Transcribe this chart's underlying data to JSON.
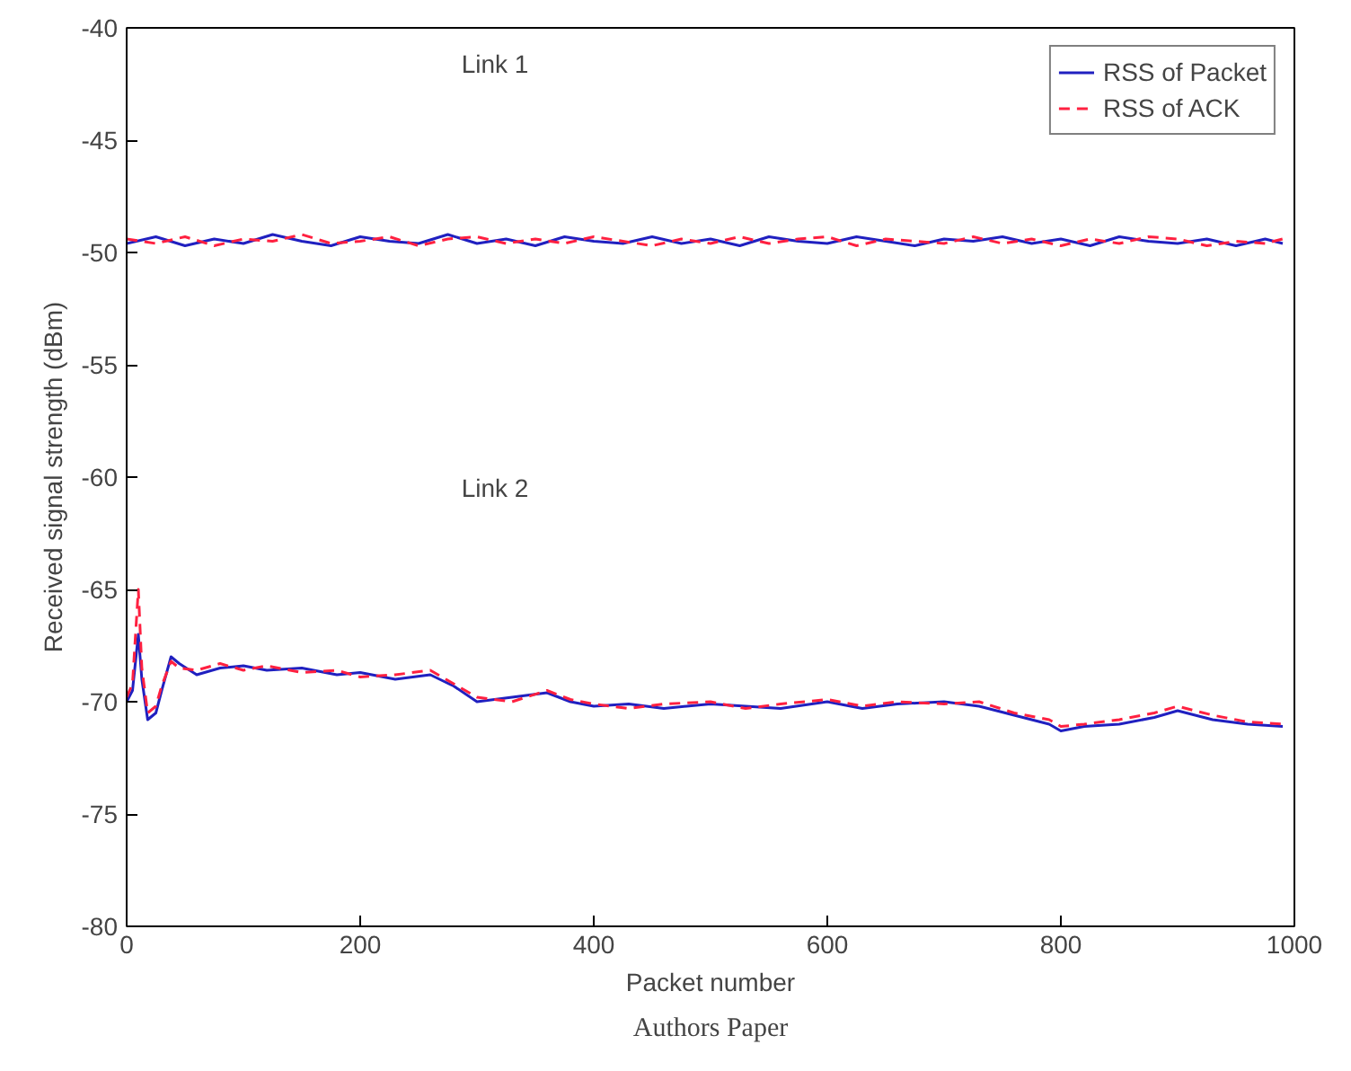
{
  "chart_data": {
    "type": "line",
    "xlabel": "Packet number",
    "ylabel": "Received signal strength (dBm)",
    "xlim": [
      0,
      1000
    ],
    "ylim": [
      -80,
      -40
    ],
    "xticks": [
      0,
      200,
      400,
      600,
      800,
      1000
    ],
    "yticks": [
      -80,
      -75,
      -70,
      -65,
      -60,
      -55,
      -50,
      -45,
      -40
    ],
    "grid": false,
    "legend": "top right",
    "annotations": [
      "Link 1",
      "Link 2",
      "Authors Paper"
    ],
    "series": [
      {
        "name": "RSS of Packet",
        "color": "#2020c0",
        "line_style": "solid",
        "x": [
          0,
          25,
          50,
          75,
          100,
          125,
          150,
          175,
          200,
          225,
          250,
          275,
          300,
          325,
          350,
          375,
          400,
          425,
          450,
          475,
          500,
          525,
          550,
          575,
          600,
          625,
          650,
          675,
          700,
          725,
          750,
          775,
          800,
          825,
          850,
          875,
          900,
          925,
          950,
          975,
          990
        ],
        "values": [
          -49.6,
          -49.3,
          -49.7,
          -49.4,
          -49.6,
          -49.2,
          -49.5,
          -49.7,
          -49.3,
          -49.5,
          -49.6,
          -49.2,
          -49.6,
          -49.4,
          -49.7,
          -49.3,
          -49.5,
          -49.6,
          -49.3,
          -49.6,
          -49.4,
          -49.7,
          -49.3,
          -49.5,
          -49.6,
          -49.3,
          -49.5,
          -49.7,
          -49.4,
          -49.5,
          -49.3,
          -49.6,
          -49.4,
          -49.7,
          -49.3,
          -49.5,
          -49.6,
          -49.4,
          -49.7,
          -49.4,
          -49.6
        ]
      },
      {
        "name": "RSS of ACK",
        "color": "#ff2040",
        "line_style": "dashed",
        "x": [
          0,
          25,
          50,
          75,
          100,
          125,
          150,
          175,
          200,
          225,
          250,
          275,
          300,
          325,
          350,
          375,
          400,
          425,
          450,
          475,
          500,
          525,
          550,
          575,
          600,
          625,
          650,
          675,
          700,
          725,
          750,
          775,
          800,
          825,
          850,
          875,
          900,
          925,
          950,
          975,
          990
        ],
        "values": [
          -49.4,
          -49.6,
          -49.3,
          -49.7,
          -49.4,
          -49.5,
          -49.2,
          -49.6,
          -49.5,
          -49.3,
          -49.7,
          -49.4,
          -49.3,
          -49.6,
          -49.4,
          -49.6,
          -49.3,
          -49.5,
          -49.7,
          -49.4,
          -49.6,
          -49.3,
          -49.6,
          -49.4,
          -49.3,
          -49.7,
          -49.4,
          -49.5,
          -49.6,
          -49.3,
          -49.6,
          -49.4,
          -49.7,
          -49.4,
          -49.6,
          -49.3,
          -49.4,
          -49.7,
          -49.5,
          -49.6,
          -49.4
        ]
      },
      {
        "color": "#2020c0",
        "line_style": "solid",
        "x": [
          0,
          5,
          10,
          13,
          18,
          25,
          30,
          38,
          45,
          60,
          80,
          100,
          120,
          150,
          180,
          200,
          230,
          260,
          280,
          300,
          330,
          360,
          380,
          400,
          430,
          460,
          500,
          530,
          560,
          600,
          630,
          660,
          700,
          730,
          760,
          790,
          800,
          820,
          850,
          880,
          900,
          930,
          960,
          990
        ],
        "values": [
          -70,
          -69.5,
          -67,
          -69,
          -70.8,
          -70.5,
          -69.5,
          -68,
          -68.3,
          -68.8,
          -68.5,
          -68.4,
          -68.6,
          -68.5,
          -68.8,
          -68.7,
          -69,
          -68.8,
          -69.3,
          -70,
          -69.8,
          -69.6,
          -70,
          -70.2,
          -70.1,
          -70.3,
          -70.1,
          -70.2,
          -70.3,
          -70,
          -70.3,
          -70.1,
          -70,
          -70.2,
          -70.6,
          -71,
          -71.3,
          -71.1,
          -71,
          -70.7,
          -70.4,
          -70.8,
          -71,
          -71.1
        ]
      },
      {
        "color": "#ff2040",
        "line_style": "dashed",
        "x": [
          0,
          5,
          10,
          13,
          18,
          25,
          30,
          38,
          45,
          60,
          80,
          100,
          120,
          150,
          180,
          200,
          230,
          260,
          280,
          300,
          330,
          360,
          380,
          400,
          430,
          460,
          500,
          530,
          560,
          600,
          630,
          660,
          700,
          730,
          760,
          790,
          800,
          820,
          850,
          880,
          900,
          930,
          960,
          990
        ],
        "values": [
          -69.8,
          -69.2,
          -65,
          -68.5,
          -70.5,
          -70.2,
          -69.3,
          -68.2,
          -68.5,
          -68.6,
          -68.3,
          -68.6,
          -68.4,
          -68.7,
          -68.6,
          -68.9,
          -68.8,
          -68.6,
          -69.2,
          -69.8,
          -70,
          -69.5,
          -69.9,
          -70.1,
          -70.3,
          -70.1,
          -70,
          -70.3,
          -70.1,
          -69.9,
          -70.2,
          -70,
          -70.1,
          -70,
          -70.5,
          -70.8,
          -71.1,
          -71,
          -70.8,
          -70.5,
          -70.2,
          -70.6,
          -70.9,
          -71
        ]
      }
    ]
  }
}
